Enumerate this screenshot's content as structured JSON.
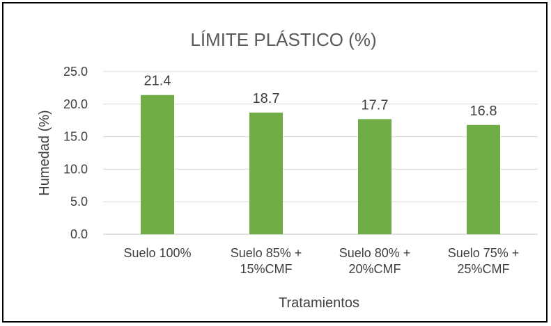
{
  "chart_data": {
    "type": "bar",
    "title": "LÍMITE PLÁSTICO (%)",
    "xlabel": "Tratamientos",
    "ylabel": "Humedad  (%)",
    "categories": [
      [
        "Suelo 100%"
      ],
      [
        "Suelo 85% +",
        "15%CMF"
      ],
      [
        "Suelo 80% +",
        "20%CMF"
      ],
      [
        "Suelo 75% +",
        "25%CMF"
      ]
    ],
    "values": [
      21.4,
      18.7,
      17.7,
      16.8
    ],
    "data_labels": [
      "21.4",
      "18.7",
      "17.7",
      "16.8"
    ],
    "ylim": [
      0,
      25
    ],
    "yticks": [
      "0.0",
      "5.0",
      "10.0",
      "15.0",
      "20.0",
      "25.0"
    ],
    "bar_color": "#70ad47",
    "grid": true,
    "legend": "none"
  }
}
